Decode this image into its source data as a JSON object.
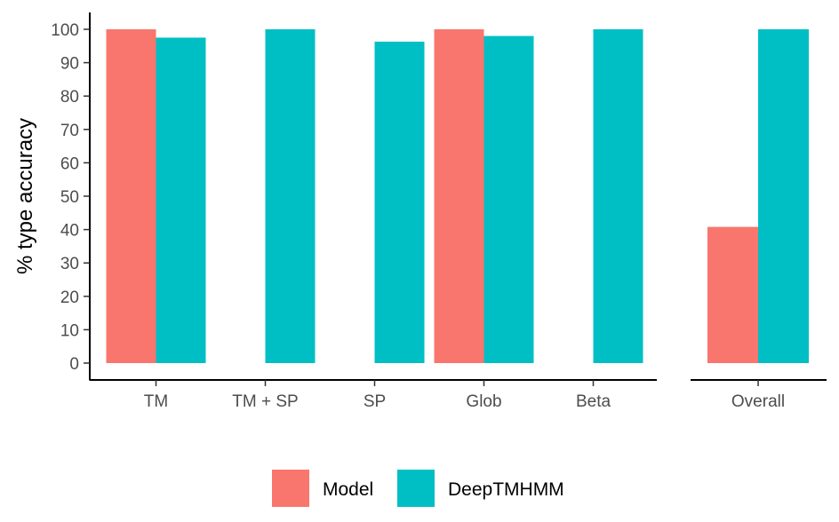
{
  "chart_data": {
    "type": "bar",
    "ylabel": "% type accuracy",
    "xlabel": "",
    "ylim": [
      0,
      100
    ],
    "yticks": [
      0,
      10,
      20,
      30,
      40,
      50,
      60,
      70,
      80,
      90,
      100
    ],
    "grid": false,
    "legend_position": "bottom",
    "colors": {
      "Model": "#F8766D",
      "DeepTMHMM": "#00BFC4"
    },
    "panels": [
      {
        "categories": [
          "TM",
          "TM + SP",
          "SP",
          "Glob",
          "Beta"
        ],
        "series": [
          {
            "name": "Model",
            "values": [
              100,
              null,
              null,
              100,
              null
            ]
          },
          {
            "name": "DeepTMHMM",
            "values": [
              97.5,
              100,
              96.3,
              98,
              100
            ]
          }
        ]
      },
      {
        "categories": [
          "Overall"
        ],
        "series": [
          {
            "name": "Model",
            "values": [
              40.8
            ]
          },
          {
            "name": "DeepTMHMM",
            "values": [
              100
            ]
          }
        ]
      }
    ],
    "legend": [
      {
        "name": "Model",
        "label": "Model"
      },
      {
        "name": "DeepTMHMM",
        "label": "DeepTMHMM"
      }
    ]
  }
}
